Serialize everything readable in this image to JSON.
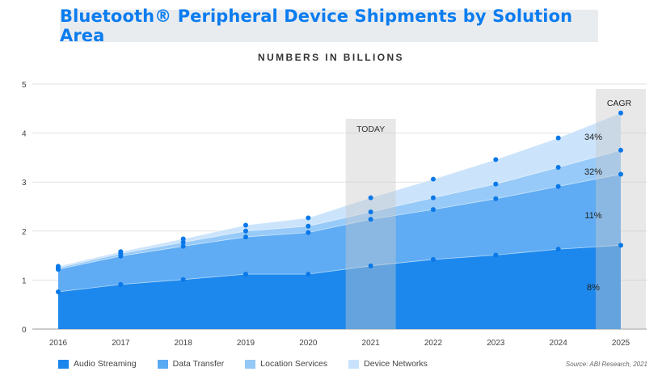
{
  "header": {
    "title": "Bluetooth® Peripheral Device Shipments by Solution Area",
    "subtitle": "NUMBERS IN BILLIONS"
  },
  "source": "Source: ABI Research, 2021",
  "highlights": {
    "today_label": "TODAY",
    "cagr_label": "CAGR",
    "cagr_values": [
      "34%",
      "32%",
      "11%",
      "8%"
    ]
  },
  "colors": {
    "audio_streaming": "#1a86ec",
    "data_transfer": "#5aa9f3",
    "location_services": "#93c8f7",
    "device_networks": "#c8e2fb",
    "marker": "#0a78e8",
    "highlight_band": "#c7c7c7"
  },
  "chart_data": {
    "type": "area",
    "stacked": true,
    "title": "Bluetooth® Peripheral Device Shipments by Solution Area",
    "subtitle": "NUMBERS IN BILLIONS",
    "x": [
      "2016",
      "2017",
      "2018",
      "2019",
      "2020",
      "2021",
      "2022",
      "2023",
      "2024",
      "2025"
    ],
    "ylim": [
      0,
      5
    ],
    "yticks": [
      "0",
      "1",
      "2",
      "3",
      "4",
      "5"
    ],
    "grid": true,
    "legend_position": "bottom",
    "series": [
      {
        "name": "Audio Streaming",
        "cumulative": [
          0.76,
          0.91,
          1.01,
          1.12,
          1.12,
          1.29,
          1.42,
          1.51,
          1.63,
          1.71
        ]
      },
      {
        "name": "Data Transfer",
        "cumulative": [
          1.22,
          1.49,
          1.69,
          1.88,
          1.97,
          2.24,
          2.44,
          2.66,
          2.91,
          3.16
        ]
      },
      {
        "name": "Location Services",
        "cumulative": [
          1.25,
          1.54,
          1.77,
          2.0,
          2.1,
          2.39,
          2.68,
          2.96,
          3.3,
          3.65
        ]
      },
      {
        "name": "Device Networks",
        "cumulative": [
          1.28,
          1.58,
          1.84,
          2.12,
          2.27,
          2.68,
          3.06,
          3.46,
          3.9,
          4.41
        ]
      }
    ]
  }
}
